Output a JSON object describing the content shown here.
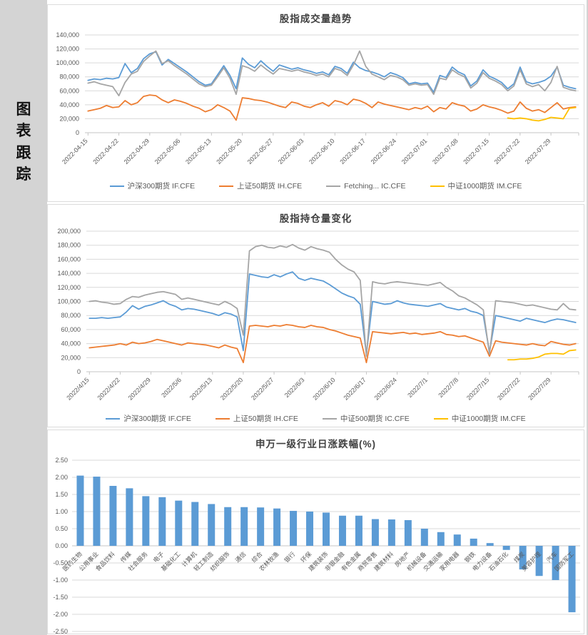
{
  "page": {
    "background": "#d4d4d4",
    "sidebar_label": "图表跟踪"
  },
  "palette": {
    "blue": "#5B9BD5",
    "orange": "#ED7D31",
    "gray": "#A5A5A5",
    "yellow": "#FFC000",
    "bar": "#5B9BD5",
    "grid": "#d9d9d9",
    "axis": "#c6c6c6",
    "axis_text": "#595959",
    "title_text": "#3f3f3f"
  },
  "chart_data": [
    {
      "type": "line",
      "title": "股指成交量趋势",
      "ylim": [
        0,
        140000
      ],
      "y_step": 20000,
      "grid": true,
      "legend_position": "bottom",
      "points_per_tick": 5,
      "x_tick_labels": [
        "2022-04-15",
        "2022-04-22",
        "2022-04-29",
        "2022-05-06",
        "2022-05-13",
        "2022-05-20",
        "2022-05-27",
        "2022-06-03",
        "2022-06-10",
        "2022-06-17",
        "2022-06-24",
        "2022-07-01",
        "2022-07-08",
        "2022-07-15",
        "2022-07-22",
        "2022-07-29"
      ],
      "series": [
        {
          "name": "沪深300期货 IF.CFE",
          "color_key": "blue",
          "start_index": 0,
          "values": [
            75000,
            77000,
            76000,
            78000,
            77000,
            79000,
            99000,
            86000,
            92000,
            106000,
            113000,
            116000,
            97000,
            105000,
            99000,
            93000,
            87000,
            80000,
            73000,
            68000,
            70000,
            83000,
            96000,
            82000,
            63000,
            107000,
            98000,
            93000,
            103000,
            95000,
            88000,
            97000,
            94000,
            91000,
            93000,
            90000,
            88000,
            85000,
            87000,
            83000,
            95000,
            92000,
            85000,
            101000,
            93000,
            89000,
            87000,
            84000,
            80000,
            86000,
            83000,
            79000,
            70000,
            72000,
            70000,
            71000,
            58000,
            82000,
            79000,
            94000,
            87000,
            83000,
            67000,
            74000,
            90000,
            81000,
            77000,
            72000,
            63000,
            70000,
            94000,
            73000,
            70000,
            72000,
            75000,
            81000,
            94000,
            68000,
            65000,
            63000
          ]
        },
        {
          "name": "上证50期货 IH.CFE",
          "color_key": "orange",
          "start_index": 0,
          "values": [
            31000,
            33000,
            35000,
            39000,
            36000,
            37000,
            46000,
            40000,
            43000,
            52000,
            54000,
            53000,
            47000,
            43000,
            47000,
            45000,
            42000,
            38000,
            35000,
            30000,
            33000,
            40000,
            36000,
            31000,
            18000,
            50000,
            49000,
            47000,
            46000,
            44000,
            41000,
            38000,
            36000,
            44000,
            42000,
            38000,
            36000,
            40000,
            43000,
            38000,
            46000,
            44000,
            40000,
            48000,
            46000,
            42000,
            36000,
            44000,
            41000,
            39000,
            37000,
            35000,
            33000,
            36000,
            34000,
            38000,
            30000,
            36000,
            34000,
            43000,
            40000,
            38000,
            31000,
            34000,
            40000,
            37000,
            35000,
            32000,
            28000,
            31000,
            44000,
            35000,
            31000,
            33000,
            29000,
            36000,
            43000,
            34000,
            36000,
            37000
          ]
        },
        {
          "name": "Fetching... IC.CFE",
          "color_key": "gray",
          "start_index": 0,
          "values": [
            71000,
            73000,
            70000,
            68000,
            66000,
            53000,
            72000,
            84000,
            88000,
            102000,
            110000,
            117000,
            99000,
            103000,
            96000,
            90000,
            84000,
            77000,
            70000,
            66000,
            68000,
            80000,
            93000,
            78000,
            55000,
            96000,
            93000,
            88000,
            97000,
            90000,
            84000,
            92000,
            90000,
            88000,
            90000,
            87000,
            85000,
            82000,
            84000,
            80000,
            92000,
            89000,
            82000,
            97000,
            117000,
            95000,
            84000,
            80000,
            76000,
            82000,
            80000,
            76000,
            68000,
            70000,
            68000,
            69000,
            55000,
            78000,
            76000,
            90000,
            84000,
            80000,
            64000,
            71000,
            86000,
            78000,
            74000,
            69000,
            60000,
            67000,
            90000,
            70000,
            66000,
            69000,
            60000,
            72000,
            95000,
            65000,
            62000,
            60000
          ]
        },
        {
          "name": "中证1000期货 IM.CFE",
          "color_key": "yellow",
          "start_index": 68,
          "values": [
            21000,
            20000,
            21000,
            20000,
            18000,
            17000,
            19000,
            22000,
            21000,
            20000,
            35000,
            36000
          ]
        }
      ]
    },
    {
      "type": "line",
      "title": "股指持仓量变化",
      "ylim": [
        0,
        200000
      ],
      "y_step": 20000,
      "grid": true,
      "legend_position": "bottom",
      "points_per_tick": 5,
      "x_tick_labels": [
        "2022/4/15",
        "2022/4/22",
        "2022/4/29",
        "2022/5/6",
        "2022/5/13",
        "2022/5/20",
        "2022/5/27",
        "2022/6/3",
        "2022/6/10",
        "2022/6/17",
        "2022/6/24",
        "2022/7/1",
        "2022/7/8",
        "2022/7/15",
        "2022/7/22",
        "2022/7/29"
      ],
      "series": [
        {
          "name": "沪深300期货 IF.CFE",
          "color_key": "blue",
          "start_index": 0,
          "values": [
            76000,
            76000,
            77000,
            76000,
            77000,
            78000,
            85000,
            94000,
            89000,
            93000,
            95000,
            98000,
            101000,
            96000,
            93000,
            88000,
            90000,
            89000,
            87000,
            85000,
            83000,
            80000,
            84000,
            82000,
            78000,
            30000,
            139000,
            137000,
            135000,
            134000,
            138000,
            135000,
            139000,
            142000,
            133000,
            130000,
            133000,
            131000,
            129000,
            124000,
            118000,
            112000,
            108000,
            105000,
            96000,
            25000,
            100000,
            98000,
            96000,
            97000,
            101000,
            98000,
            96000,
            95000,
            94000,
            93000,
            95000,
            97000,
            92000,
            90000,
            88000,
            90000,
            86000,
            84000,
            80000,
            28000,
            80000,
            78000,
            76000,
            74000,
            72000,
            76000,
            74000,
            72000,
            70000,
            73000,
            75000,
            74000,
            72000,
            70000
          ]
        },
        {
          "name": "上证50期货 IH.CFE",
          "color_key": "orange",
          "start_index": 0,
          "values": [
            34000,
            35000,
            36000,
            37000,
            38000,
            40000,
            38000,
            42000,
            40000,
            41000,
            43000,
            46000,
            44000,
            42000,
            40000,
            38000,
            41000,
            40000,
            39000,
            38000,
            36000,
            34000,
            38000,
            35000,
            33000,
            13000,
            65000,
            66000,
            65000,
            64000,
            66000,
            65000,
            67000,
            66000,
            64000,
            63000,
            66000,
            64000,
            63000,
            60000,
            58000,
            55000,
            52000,
            50000,
            48000,
            13000,
            57000,
            56000,
            55000,
            54000,
            55000,
            56000,
            54000,
            55000,
            53000,
            54000,
            55000,
            57000,
            53000,
            52000,
            50000,
            51000,
            48000,
            45000,
            42000,
            22000,
            44000,
            42000,
            41000,
            40000,
            39000,
            38000,
            40000,
            38000,
            37000,
            43000,
            41000,
            39000,
            38000,
            40000
          ]
        },
        {
          "name": "中证500期货 IC.CFE",
          "color_key": "gray",
          "start_index": 0,
          "values": [
            100000,
            101000,
            99000,
            98000,
            96000,
            97000,
            103000,
            107000,
            106000,
            109000,
            111000,
            113000,
            114000,
            112000,
            110000,
            103000,
            105000,
            103000,
            101000,
            99000,
            97000,
            95000,
            100000,
            96000,
            90000,
            52000,
            172000,
            178000,
            180000,
            177000,
            176000,
            179000,
            177000,
            181000,
            176000,
            173000,
            178000,
            175000,
            173000,
            170000,
            160000,
            152000,
            146000,
            142000,
            130000,
            22000,
            128000,
            126000,
            125000,
            127000,
            128000,
            127000,
            126000,
            125000,
            124000,
            123000,
            125000,
            127000,
            120000,
            115000,
            108000,
            105000,
            100000,
            95000,
            88000,
            25000,
            101000,
            100000,
            99000,
            98000,
            96000,
            94000,
            95000,
            93000,
            91000,
            89000,
            88000,
            97000,
            89000,
            88000
          ]
        },
        {
          "name": "中证1000期货 IM.CFE",
          "color_key": "yellow",
          "start_index": 68,
          "values": [
            17000,
            17000,
            18000,
            18000,
            19000,
            21000,
            25000,
            26000,
            26000,
            25000,
            30000,
            31000
          ]
        }
      ]
    },
    {
      "type": "bar",
      "title": "申万一级行业日涨跌幅(%)",
      "ylim": [
        -2.5,
        2.5
      ],
      "y_step": 0.5,
      "grid": true,
      "bar_color_key": "bar",
      "categories": [
        "医药生物",
        "公用事业",
        "食品饮料",
        "传媒",
        "社会服务",
        "电子",
        "基础化工",
        "计算机",
        "轻工制造",
        "纺织服饰",
        "通信",
        "综合",
        "农林牧渔",
        "银行",
        "环保",
        "建筑装饰",
        "非银金融",
        "有色金属",
        "商贸零售",
        "建筑材料",
        "房地产",
        "机械设备",
        "交通运输",
        "家用电器",
        "钢铁",
        "电力设备",
        "石油石化",
        "煤炭",
        "美容护理",
        "汽车",
        "国防军工"
      ],
      "values": [
        2.05,
        2.02,
        1.75,
        1.68,
        1.45,
        1.42,
        1.32,
        1.28,
        1.22,
        1.13,
        1.13,
        1.12,
        1.09,
        1.02,
        1.0,
        0.97,
        0.88,
        0.88,
        0.78,
        0.77,
        0.75,
        0.5,
        0.4,
        0.33,
        0.21,
        0.08,
        -0.12,
        -0.69,
        -0.88,
        -1.0,
        -1.94
      ]
    }
  ]
}
